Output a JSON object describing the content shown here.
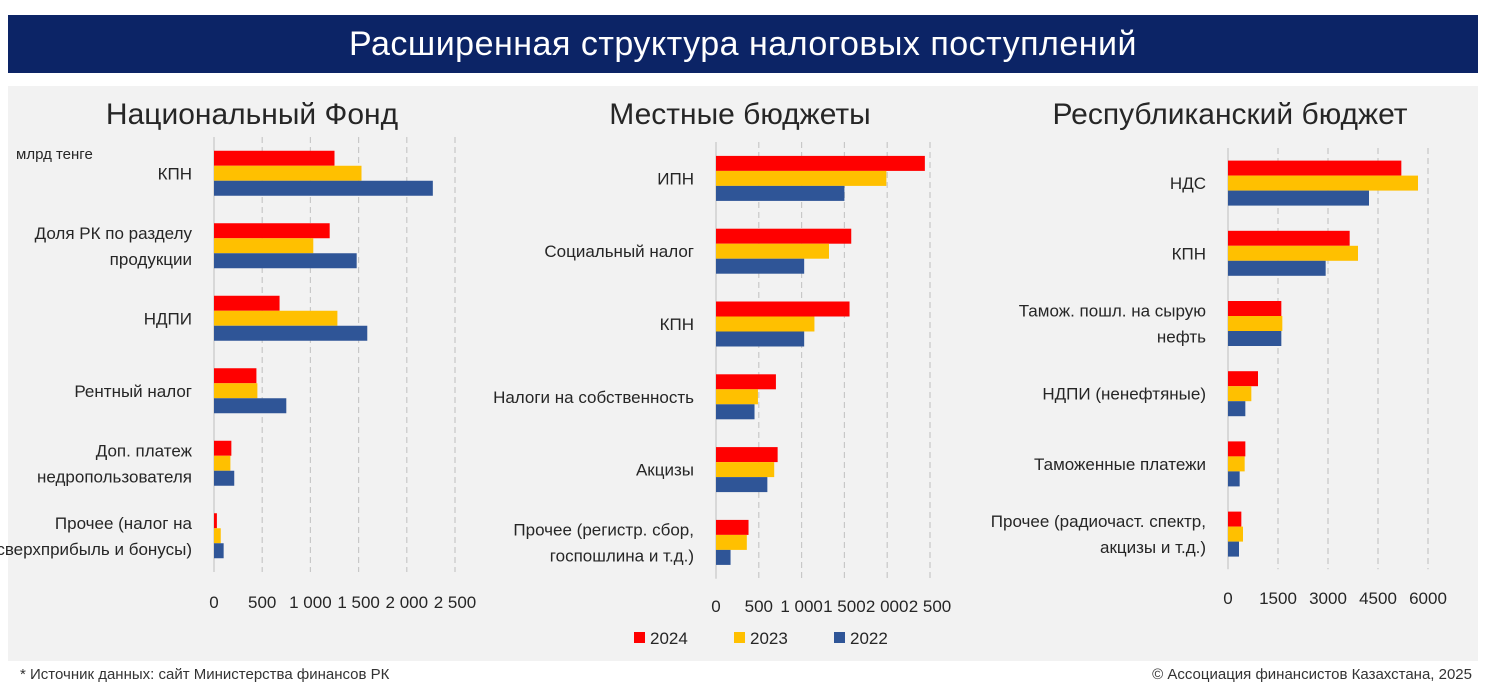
{
  "title": "Расширенная структура налоговых поступлений",
  "unit_label": "млрд тенге",
  "legend": [
    {
      "label": "2024",
      "color": "#ff0000"
    },
    {
      "label": "2023",
      "color": "#ffc000"
    },
    {
      "label": "2022",
      "color": "#2f5597"
    }
  ],
  "footer": {
    "source": "* Источник данных: сайт Министерства финансов РК",
    "copyright": "© Ассоциация финансистов Казахстана, 2025"
  },
  "chart_data": [
    {
      "type": "bar",
      "orientation": "horizontal",
      "title": "Национальный Фонд",
      "categories": [
        "КПН",
        "Доля РК по разделу продукции",
        "НДПИ",
        "Рентный налог",
        "Доп. платеж недропользователя",
        "Прочее (налог на сверхприбыль и бонусы)"
      ],
      "category_lines": [
        [
          "КПН"
        ],
        [
          "Доля РК по разделу",
          "продукции"
        ],
        [
          "НДПИ"
        ],
        [
          "Рентный налог"
        ],
        [
          "Доп. платеж",
          "недропользователя"
        ],
        [
          "Прочее (налог на",
          "сверхприбыль и бонусы)"
        ]
      ],
      "series": [
        {
          "name": "2024",
          "values": [
            1250,
            1200,
            680,
            440,
            180,
            30
          ]
        },
        {
          "name": "2023",
          "values": [
            1530,
            1030,
            1280,
            450,
            170,
            70
          ]
        },
        {
          "name": "2022",
          "values": [
            2270,
            1480,
            1590,
            750,
            210,
            100
          ]
        }
      ],
      "xlim": [
        0,
        2500
      ],
      "ticks": [
        0,
        500,
        1000,
        1500,
        2000,
        2500
      ],
      "tick_labels": [
        "0",
        "500",
        "1 000",
        "1 500",
        "2 000",
        "2 500"
      ],
      "grid": true
    },
    {
      "type": "bar",
      "orientation": "horizontal",
      "title": "Местные бюджеты",
      "categories": [
        "ИПН",
        "Социальный налог",
        "КПН",
        "Налоги на собственность",
        "Акцизы",
        "Прочее (регистр. сбор, госпошлина и т.д.)"
      ],
      "category_lines": [
        [
          "ИПН"
        ],
        [
          "Социальный налог"
        ],
        [
          "КПН"
        ],
        [
          "Налоги на собственность"
        ],
        [
          "Акцизы"
        ],
        [
          "Прочее (регистр. сбор,",
          "госпошлина и т.д.)"
        ]
      ],
      "series": [
        {
          "name": "2024",
          "values": [
            2440,
            1580,
            1560,
            700,
            720,
            380
          ]
        },
        {
          "name": "2023",
          "values": [
            1990,
            1320,
            1150,
            490,
            680,
            360
          ]
        },
        {
          "name": "2022",
          "values": [
            1500,
            1030,
            1030,
            450,
            600,
            170
          ]
        }
      ],
      "xlim": [
        0,
        2500
      ],
      "ticks": [
        0,
        500,
        1000,
        1500,
        2000,
        2500
      ],
      "tick_labels": [
        "0",
        "500",
        "1 000",
        "1 500",
        "2 000",
        "2 500"
      ],
      "grid": true
    },
    {
      "type": "bar",
      "orientation": "horizontal",
      "title": "Республиканский бюджет",
      "categories": [
        "НДС",
        "КПН",
        "Тамож. пошл. на сырую нефть",
        "НДПИ (ненефтяные)",
        "Таможенные платежи",
        "Прочее (радиочаст. спектр, акцизы и т.д.)"
      ],
      "category_lines": [
        [
          "НДС"
        ],
        [
          "КПН"
        ],
        [
          "Тамож. пошл. на сырую",
          "нефть"
        ],
        [
          "НДПИ (ненефтяные)"
        ],
        [
          "Таможенные платежи"
        ],
        [
          "Прочее (радиочаст. спектр,",
          "акцизы и т.д.)"
        ]
      ],
      "series": [
        {
          "name": "2024",
          "values": [
            5200,
            3650,
            1600,
            900,
            520,
            400
          ]
        },
        {
          "name": "2023",
          "values": [
            5700,
            3900,
            1630,
            700,
            500,
            450
          ]
        },
        {
          "name": "2022",
          "values": [
            4230,
            2930,
            1600,
            520,
            350,
            330
          ]
        }
      ],
      "xlim": [
        0,
        6000
      ],
      "ticks": [
        0,
        1500,
        3000,
        4500,
        6000
      ],
      "tick_labels": [
        "0",
        "1500",
        "3000",
        "4500",
        "6000"
      ],
      "grid": true
    }
  ]
}
